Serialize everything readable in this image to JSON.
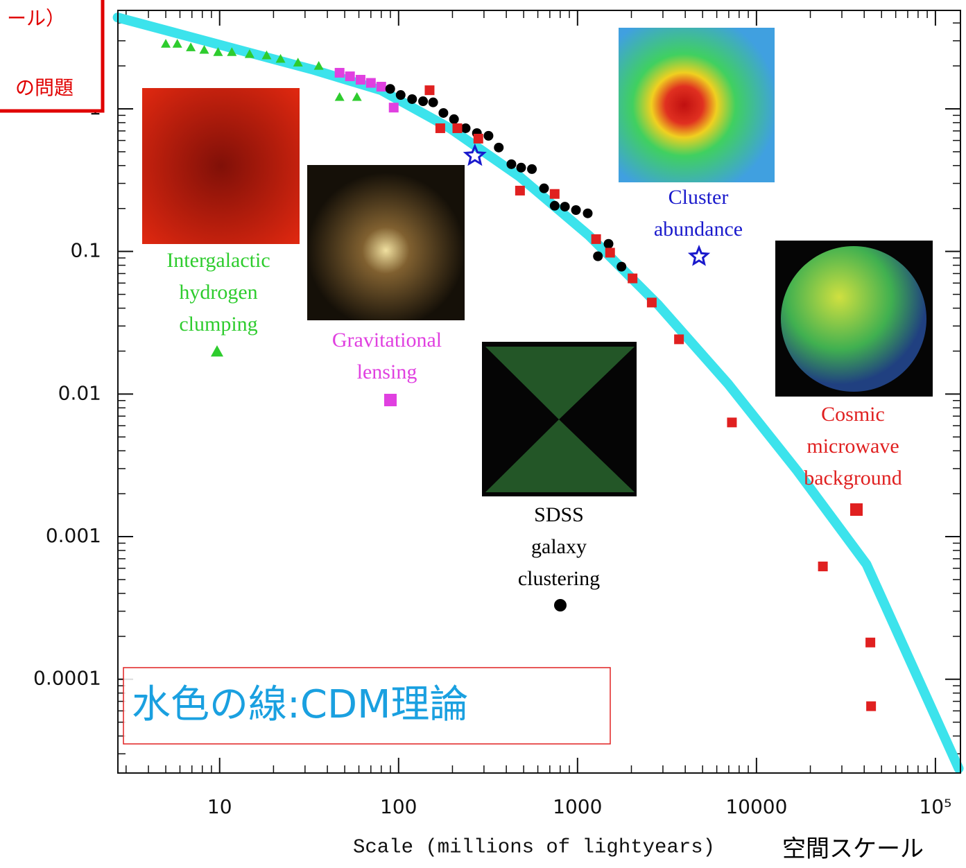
{
  "chart_data": {
    "type": "scatter",
    "xlabel": "Scale (millions of lightyears)",
    "log_x": true,
    "log_y": true,
    "xlim": [
      2.7,
      138000
    ],
    "ylim": [
      2.2e-05,
      4.9
    ],
    "xticks": [
      10,
      100,
      1000,
      10000,
      {
        "value": 100000,
        "label": "10⁵"
      }
    ],
    "yticks": [
      {
        "value": 0.0001,
        "label": "0.0001"
      },
      {
        "value": 0.001,
        "label": "0.001"
      },
      {
        "value": 0.01,
        "label": "0.01"
      },
      0.1,
      1
    ],
    "theory": {
      "color": "#3ce3ec",
      "x": [
        2.69,
        8.6,
        32.8,
        80,
        194,
        475,
        1160,
        2820,
        6970,
        16900,
        41200,
        135000
      ],
      "values": [
        4.37,
        2.96,
        1.89,
        1.35,
        0.73,
        0.334,
        0.129,
        0.0423,
        0.0117,
        0.00289,
        0.00064,
        2.37e-05
      ]
    },
    "series": [
      {
        "label_lines": [
          "Intergalactic",
          "hydrogen",
          "clumping"
        ],
        "color": "#2ecc2e",
        "marker": "triangle",
        "x": [
          5.0,
          5.8,
          6.9,
          8.2,
          9.8,
          11.7,
          14.7,
          18.3,
          21.9,
          27.4,
          35.8,
          46.8,
          58.5
        ],
        "values": [
          2.86,
          2.86,
          2.7,
          2.59,
          2.5,
          2.5,
          2.42,
          2.37,
          2.24,
          2.11,
          2.0,
          1.21,
          1.21
        ]
      },
      {
        "label_lines": [
          "Gravitational",
          "lensing"
        ],
        "color": "#e040e0",
        "marker": "square",
        "x": [
          46.8,
          53.5,
          61.3,
          70,
          80,
          93.9
        ],
        "values": [
          1.79,
          1.69,
          1.6,
          1.52,
          1.43,
          1.02
        ]
      },
      {
        "label_lines": [
          "SDSS",
          "galaxy",
          "clustering"
        ],
        "color": "#000000",
        "marker": "circle",
        "x": [
          89.8,
          102.7,
          119,
          137,
          156,
          178,
          204,
          237,
          274,
          318,
          363,
          427,
          484,
          556,
          650,
          745,
          850,
          980,
          1140,
          1300,
          1490,
          1760
        ],
        "values": [
          1.38,
          1.25,
          1.17,
          1.13,
          1.11,
          0.935,
          0.846,
          0.731,
          0.676,
          0.647,
          0.535,
          0.409,
          0.387,
          0.378,
          0.277,
          0.209,
          0.206,
          0.195,
          0.185,
          0.0925,
          0.113,
          0.0782
        ]
      },
      {
        "label_lines": [
          "Cluster",
          "abundance"
        ],
        "color": "#1a1acc",
        "marker": "star",
        "x": [
          267
        ],
        "values": [
          0.468
        ]
      },
      {
        "label_lines": [
          "Cosmic",
          "microwave",
          "background"
        ],
        "color": "#e02020",
        "marker": "square",
        "x": [
          149,
          171,
          213,
          279,
          477,
          745,
          1270,
          1520,
          2030,
          2600,
          3690,
          7290,
          23500,
          43300,
          43700
        ],
        "values": [
          1.35,
          0.731,
          0.731,
          0.618,
          0.267,
          0.253,
          0.122,
          0.098,
          0.0647,
          0.0438,
          0.0242,
          0.00632,
          0.000618,
          0.000181,
          6.47e-05
        ]
      }
    ]
  },
  "overlays": {
    "corner_line1": "ール）",
    "corner_line2": "の問題",
    "theory_note": "水色の線:CDM理論",
    "axis_note": "空間スケール"
  }
}
